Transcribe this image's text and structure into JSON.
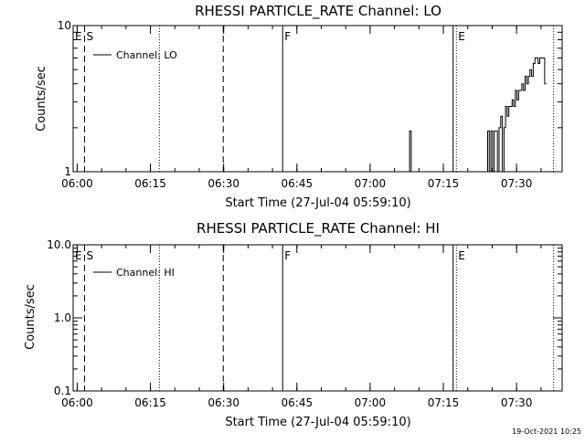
{
  "footer": {
    "timestamp": "19-Oct-2021 10:25"
  },
  "chart_data": [
    {
      "type": "line",
      "title": "RHESSI PARTICLE_RATE Channel: LO",
      "xlabel": "Start Time (27-Jul-04 05:59:10)",
      "ylabel": "Counts/sec",
      "yscale": "log",
      "ylim": [
        1,
        10
      ],
      "xlim": [
        "05:59:10",
        "07:39:20"
      ],
      "x_ticks": [
        "06:00",
        "06:15",
        "06:30",
        "06:45",
        "07:00",
        "07:15",
        "07:30"
      ],
      "y_ticks": [
        "1",
        "10"
      ],
      "legend": {
        "label": "Channel: LO",
        "placement": "top-left"
      },
      "markers": [
        {
          "label": "E",
          "time": "05:59:10",
          "style": "none"
        },
        {
          "label": "S",
          "time": "06:01:30",
          "style": "dashed"
        },
        {
          "label": "",
          "time": "06:16:50",
          "style": "dotted"
        },
        {
          "label": "",
          "time": "06:29:55",
          "style": "dashed"
        },
        {
          "label": "F",
          "time": "06:42:05",
          "style": "solid"
        },
        {
          "label": "",
          "time": "07:17:00",
          "style": "solid"
        },
        {
          "label": "E",
          "time": "07:17:40",
          "style": "dotted"
        },
        {
          "label": "",
          "time": "07:37:35",
          "style": "dotted"
        }
      ],
      "series": [
        {
          "name": "Channel: LO",
          "segments": [
            {
              "x": [
                "07:07:45",
                "07:08:05",
                "07:08:25"
              ],
              "y": [
                1,
                1.9,
                1
              ]
            },
            {
              "x": [
                "07:23:45",
                "07:24:05",
                "07:24:25",
                "07:24:45",
                "07:25:05",
                "07:25:25",
                "07:25:45",
                "07:26:05",
                "07:26:25",
                "07:26:45",
                "07:27:05",
                "07:27:25",
                "07:27:45",
                "07:28:05",
                "07:28:25",
                "07:28:45",
                "07:29:05",
                "07:29:25",
                "07:29:45",
                "07:30:05",
                "07:30:25",
                "07:30:45",
                "07:31:05",
                "07:31:25",
                "07:31:45",
                "07:32:05",
                "07:32:25",
                "07:32:45",
                "07:33:05",
                "07:33:25",
                "07:33:45",
                "07:34:05",
                "07:34:25",
                "07:34:45",
                "07:35:05",
                "07:35:25",
                "07:35:45",
                "07:36:05"
              ],
              "y": [
                1,
                1.9,
                1,
                1.9,
                1,
                1.9,
                1.9,
                1,
                2.0,
                2.4,
                1,
                2.0,
                2.8,
                2.4,
                2.8,
                2.8,
                3.1,
                2.8,
                3.6,
                3.1,
                3.6,
                3.6,
                4.0,
                3.6,
                4.5,
                4.0,
                4.5,
                5.0,
                4.5,
                5.5,
                6.0,
                6.0,
                5.5,
                6.0,
                6.0,
                6.0,
                4.0,
                4.0
              ]
            }
          ]
        }
      ]
    },
    {
      "type": "line",
      "title": "RHESSI PARTICLE_RATE Channel: HI",
      "xlabel": "Start Time (27-Jul-04 05:59:10)",
      "ylabel": "Counts/sec",
      "yscale": "log",
      "ylim": [
        0.1,
        10
      ],
      "xlim": [
        "05:59:10",
        "07:39:20"
      ],
      "x_ticks": [
        "06:00",
        "06:15",
        "06:30",
        "06:45",
        "07:00",
        "07:15",
        "07:30"
      ],
      "y_ticks": [
        "0.1",
        "1.0",
        "10.0"
      ],
      "legend": {
        "label": "Channel: HI",
        "placement": "top-left"
      },
      "markers": [
        {
          "label": "E",
          "time": "05:59:10",
          "style": "none"
        },
        {
          "label": "S",
          "time": "06:01:30",
          "style": "dashed"
        },
        {
          "label": "",
          "time": "06:16:50",
          "style": "dotted"
        },
        {
          "label": "",
          "time": "06:29:55",
          "style": "dashed"
        },
        {
          "label": "F",
          "time": "06:42:05",
          "style": "solid"
        },
        {
          "label": "",
          "time": "07:17:00",
          "style": "solid"
        },
        {
          "label": "E",
          "time": "07:17:40",
          "style": "dotted"
        },
        {
          "label": "",
          "time": "07:37:35",
          "style": "dotted"
        }
      ],
      "series": [
        {
          "name": "Channel: HI",
          "segments": []
        }
      ]
    }
  ]
}
